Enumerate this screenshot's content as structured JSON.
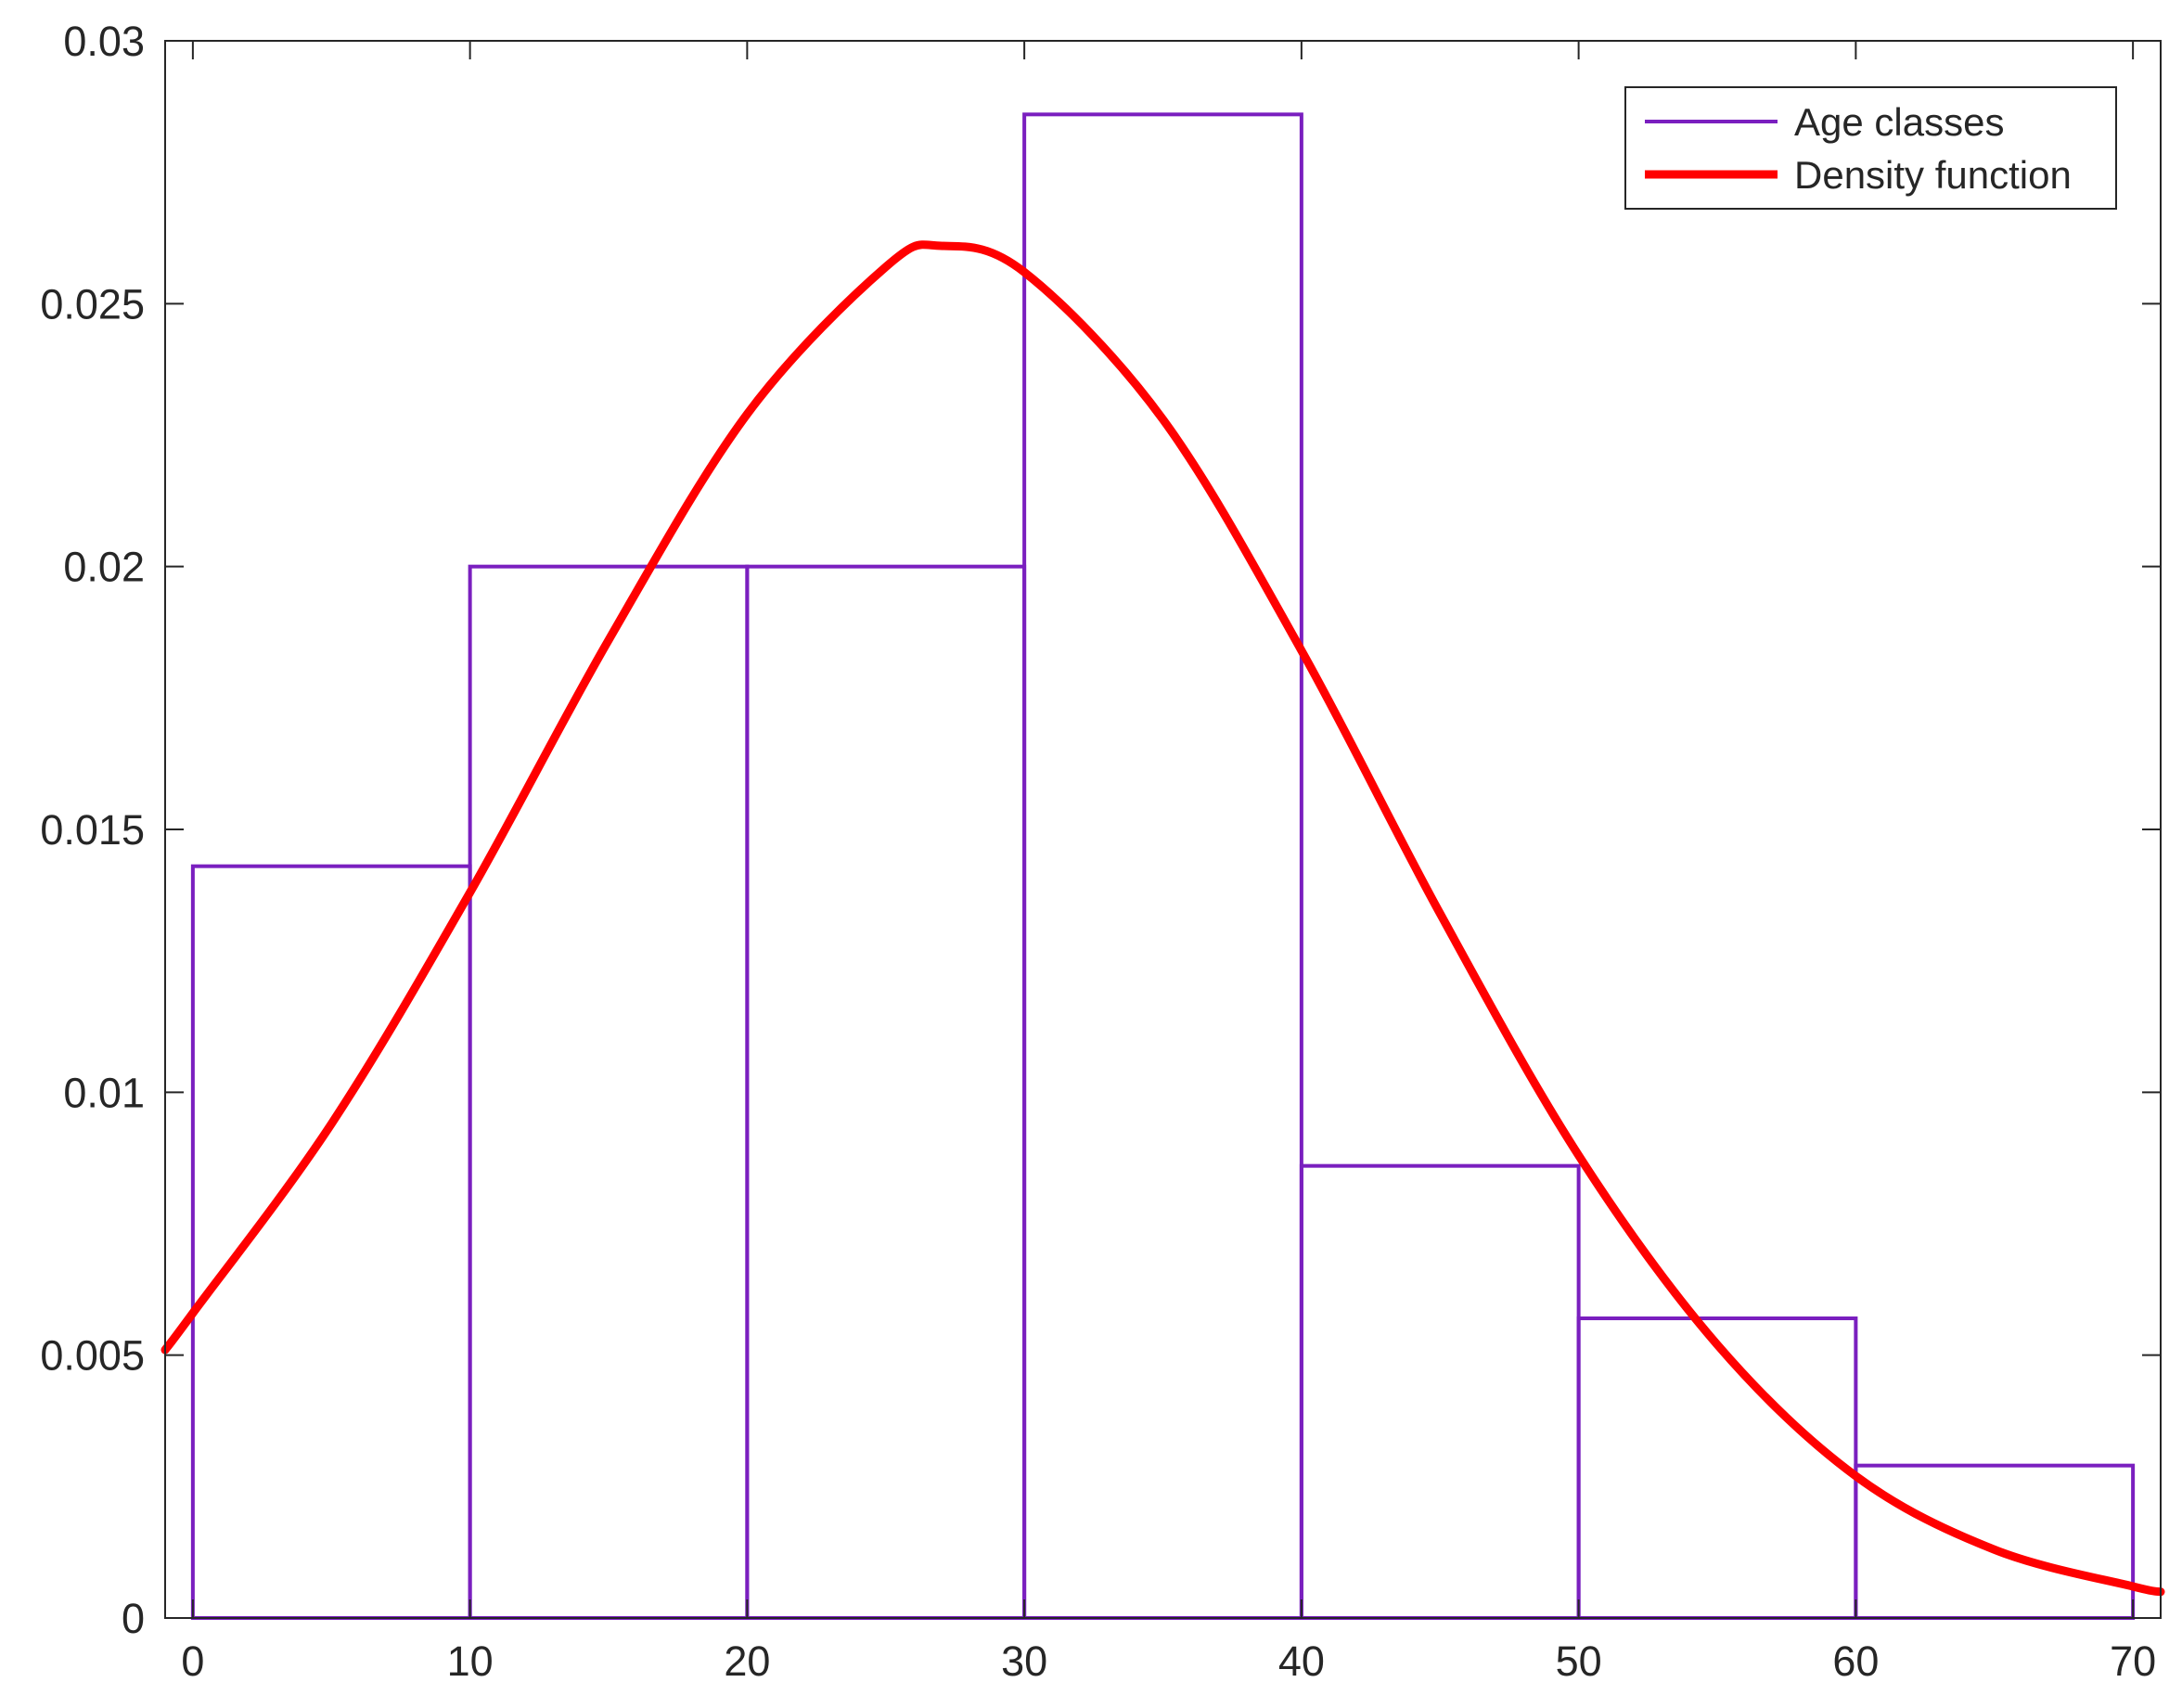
{
  "chart_data": {
    "type": "bar",
    "bins": [
      {
        "from": 0,
        "to": 10,
        "value": 0.0143
      },
      {
        "from": 10,
        "to": 20,
        "value": 0.02
      },
      {
        "from": 20,
        "to": 30,
        "value": 0.02
      },
      {
        "from": 30,
        "to": 40,
        "value": 0.0286
      },
      {
        "from": 40,
        "to": 50,
        "value": 0.0086
      },
      {
        "from": 50,
        "to": 60,
        "value": 0.0057
      },
      {
        "from": 60,
        "to": 70,
        "value": 0.0029
      }
    ],
    "density_curve": {
      "name": "Density function",
      "x": [
        -1,
        0,
        5,
        10,
        15,
        20,
        25,
        27,
        30,
        35,
        40,
        45,
        50,
        55,
        60,
        65,
        70,
        71
      ],
      "y": [
        0.0051,
        0.0058,
        0.0094,
        0.0138,
        0.0186,
        0.0229,
        0.0257,
        0.0261,
        0.0256,
        0.0228,
        0.0184,
        0.0134,
        0.0088,
        0.0052,
        0.0027,
        0.0013,
        0.0006,
        0.0005
      ]
    },
    "series": [
      {
        "name": "Age classes",
        "color": "#7a1fbf"
      },
      {
        "name": "Density function",
        "color": "#ff0000"
      }
    ],
    "xlim": [
      -1,
      71
    ],
    "ylim": [
      0,
      0.03
    ],
    "x_ticks": [
      "0",
      "10",
      "20",
      "30",
      "40",
      "50",
      "60",
      "70"
    ],
    "y_ticks": [
      "0",
      "0.005",
      "0.01",
      "0.015",
      "0.02",
      "0.025",
      "0.03"
    ],
    "title": "",
    "xlabel": "",
    "ylabel": "",
    "legend_position": "top-right",
    "grid": false
  }
}
